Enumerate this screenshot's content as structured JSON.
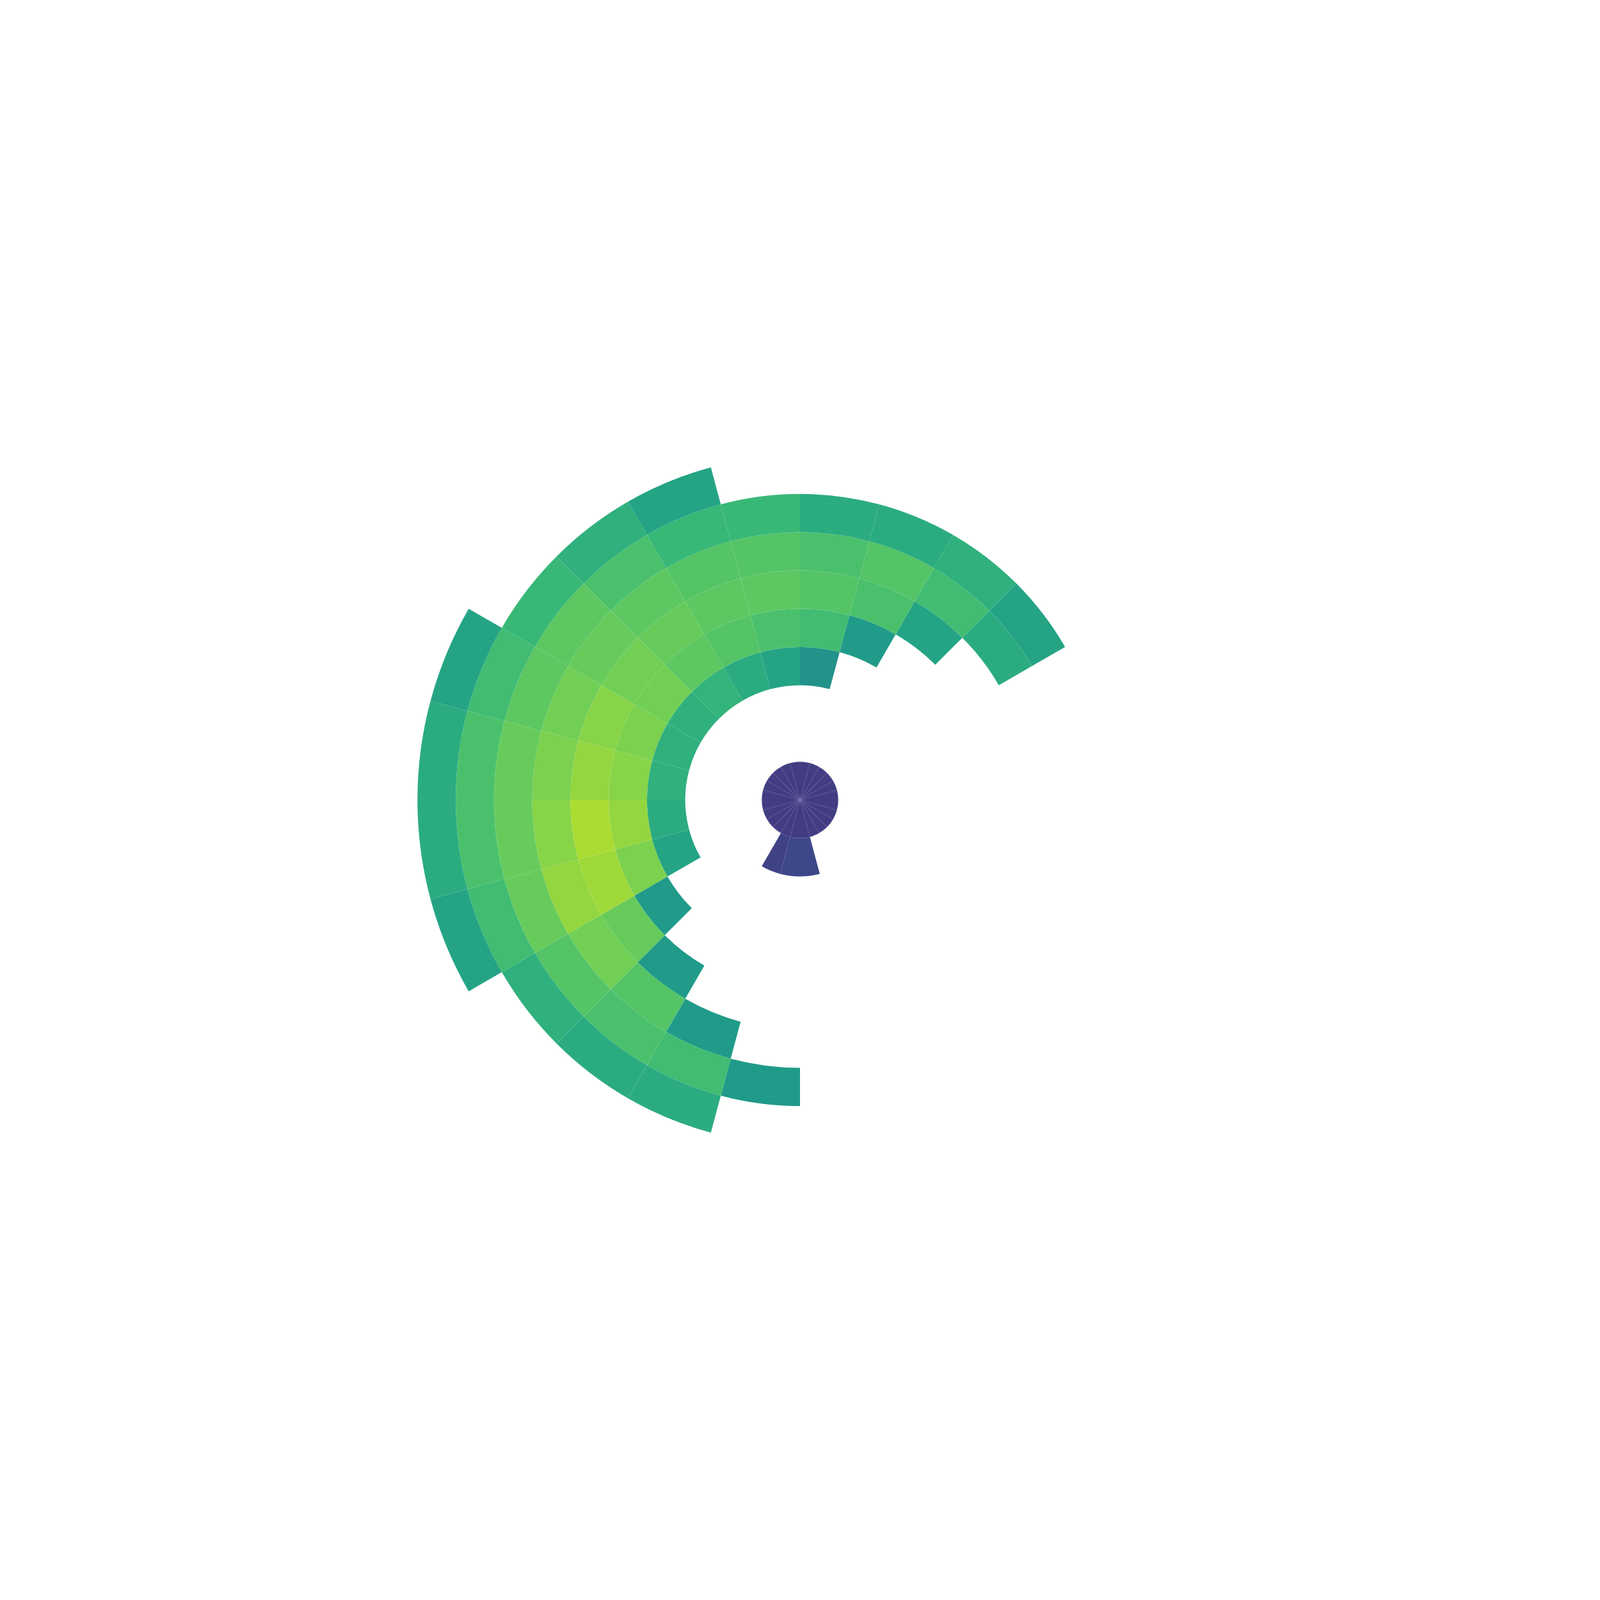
{
  "chart_data": {
    "type": "polar_heatmap",
    "rlim": [
      0,
      200
    ],
    "range_edges": [
      0,
      15,
      30,
      45,
      60,
      75,
      90,
      105,
      120,
      135,
      150
    ],
    "azimuth_edges": [
      0,
      15,
      30,
      45,
      60,
      75,
      90,
      105,
      120,
      135,
      150,
      165,
      180,
      195,
      210,
      225,
      240,
      255,
      270,
      285,
      300,
      315,
      330,
      345,
      360
    ],
    "value_range": [
      -20,
      35
    ],
    "values": [
      [
        -10,
        null,
        null,
        8,
        18,
        20,
        19,
        14,
        null,
        null
      ],
      [
        -10,
        null,
        null,
        null,
        10,
        19,
        20,
        14,
        null,
        null
      ],
      [
        -10,
        null,
        null,
        null,
        null,
        12,
        18,
        15,
        null,
        null
      ],
      [
        -10,
        null,
        null,
        null,
        null,
        null,
        14,
        12,
        null,
        null
      ],
      [
        -10,
        null,
        null,
        null,
        null,
        null,
        null,
        null,
        null,
        null
      ],
      [
        -10,
        null,
        null,
        null,
        null,
        null,
        null,
        null,
        null,
        null
      ],
      [
        -10,
        null,
        null,
        null,
        null,
        null,
        null,
        null,
        null,
        null
      ],
      [
        -10,
        null,
        null,
        null,
        null,
        null,
        null,
        null,
        null,
        null
      ],
      [
        -10,
        null,
        null,
        null,
        null,
        null,
        null,
        null,
        null,
        null
      ],
      [
        -10,
        null,
        null,
        null,
        null,
        null,
        null,
        null,
        null,
        null
      ],
      [
        -10,
        null,
        null,
        null,
        null,
        null,
        null,
        null,
        null,
        null
      ],
      [
        -10,
        -8,
        null,
        null,
        null,
        null,
        null,
        null,
        null,
        null
      ],
      [
        -10,
        -8,
        null,
        null,
        null,
        null,
        null,
        10,
        null,
        null
      ],
      [
        -10,
        -9,
        null,
        null,
        null,
        null,
        10,
        18,
        14,
        null
      ],
      [
        -10,
        null,
        null,
        null,
        null,
        10,
        20,
        19,
        14,
        null
      ],
      [
        -10,
        null,
        null,
        null,
        10,
        22,
        23,
        20,
        15,
        null
      ],
      [
        -10,
        null,
        null,
        12,
        24,
        27,
        26,
        22,
        18,
        12
      ],
      [
        -10,
        null,
        null,
        14,
        26,
        28,
        25,
        22,
        19,
        14
      ],
      [
        -10,
        null,
        null,
        15,
        25,
        26,
        24,
        22,
        19,
        14
      ],
      [
        -10,
        null,
        null,
        15,
        24,
        25,
        23,
        21,
        18,
        12
      ],
      [
        -10,
        null,
        null,
        15,
        23,
        23,
        22,
        21,
        17,
        null
      ],
      [
        -10,
        null,
        null,
        16,
        21,
        22,
        21,
        19,
        15,
        null
      ],
      [
        -10,
        null,
        null,
        14,
        20,
        21,
        20,
        17,
        12,
        null
      ],
      [
        -10,
        null,
        null,
        12,
        19,
        21,
        20,
        17,
        null,
        null
      ]
    ],
    "grid": false,
    "tick_labels": false
  }
}
